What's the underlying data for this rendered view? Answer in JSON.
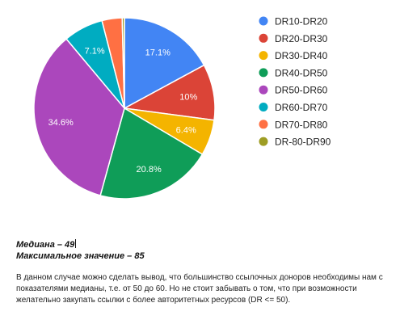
{
  "chart_data": {
    "type": "pie",
    "categories": [
      "DR10-DR20",
      "DR20-DR30",
      "DR30-DR40",
      "DR40-DR50",
      "DR50-DR60",
      "DR60-DR70",
      "DR70-DR80",
      "DR-80-DR90"
    ],
    "values": [
      17.1,
      10,
      6.4,
      20.8,
      34.6,
      7.1,
      3.6,
      0.4
    ],
    "labels": [
      "17.1%",
      "10%",
      "6.4%",
      "20.8%",
      "34.6%",
      "7.1%",
      "",
      ""
    ],
    "colors": [
      "#4285f4",
      "#db4437",
      "#f4b400",
      "#0f9d58",
      "#ab47bc",
      "#00acc1",
      "#ff7043",
      "#9e9d24"
    ],
    "legend_position": "right"
  },
  "stats": {
    "median": "Медиана – 49",
    "max": "Максимальное значение – 85"
  },
  "paragraph": "В данном случае можно сделать вывод, что большинство ссылочных доноров необходимы нам с показателями медианы, т.е. от 50 до 60. Но не стоит забывать о том, что при возможности желательно закупать ссылки с более авторитетных ресурсов (DR <= 50)."
}
